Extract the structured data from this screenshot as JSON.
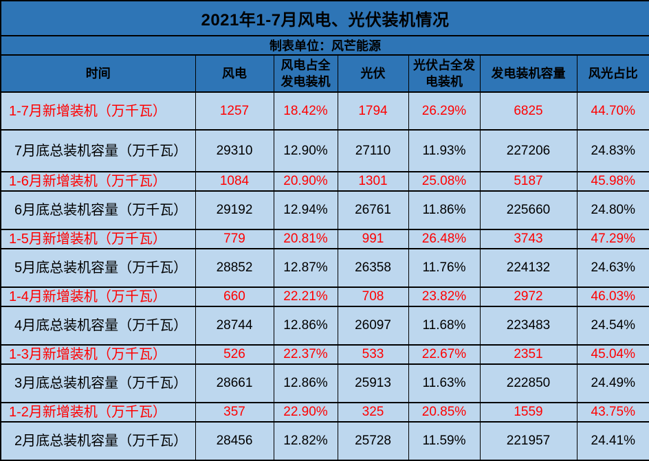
{
  "chart_data": {
    "type": "table",
    "title": "2021年1-7月风电、光伏装机情况",
    "subtitle": "制表单位：风芒能源",
    "columns": [
      "时间",
      "风电",
      "风电占全发电装机",
      "光伏",
      "光伏占全发电装机",
      "发电装机容量",
      "风光占比"
    ],
    "rows": [
      {
        "kind": "new",
        "label": "1-7月新增装机（万千瓦）",
        "values": [
          "1257",
          "18.42%",
          "1794",
          "26.29%",
          "6825",
          "44.70%"
        ]
      },
      {
        "kind": "total",
        "label": "7月底总装机容量（万千瓦）",
        "values": [
          "29310",
          "12.90%",
          "27110",
          "11.93%",
          "227206",
          "24.83%"
        ]
      },
      {
        "kind": "new",
        "label": "1-6月新增装机（万千瓦）",
        "values": [
          "1084",
          "20.90%",
          "1301",
          "25.08%",
          "5187",
          "45.98%"
        ]
      },
      {
        "kind": "total",
        "label": "6月底总装机容量（万千瓦）",
        "values": [
          "29192",
          "12.94%",
          "26761",
          "11.86%",
          "225660",
          "24.80%"
        ]
      },
      {
        "kind": "new",
        "label": "1-5月新增装机（万千瓦）",
        "values": [
          "779",
          "20.81%",
          "991",
          "26.48%",
          "3743",
          "47.29%"
        ]
      },
      {
        "kind": "total",
        "label": "5月底总装机容量（万千瓦）",
        "values": [
          "28852",
          "12.87%",
          "26358",
          "11.76%",
          "224132",
          "24.63%"
        ]
      },
      {
        "kind": "new",
        "label": "1-4月新增装机（万千瓦）",
        "values": [
          "660",
          "22.21%",
          "708",
          "23.82%",
          "2972",
          "46.03%"
        ]
      },
      {
        "kind": "total",
        "label": "4月底总装机容量（万千瓦）",
        "values": [
          "28744",
          "12.86%",
          "26097",
          "11.68%",
          "223483",
          "24.54%"
        ]
      },
      {
        "kind": "new",
        "label": "1-3月新增装机（万千瓦）",
        "values": [
          "526",
          "22.37%",
          "533",
          "22.67%",
          "2351",
          "45.04%"
        ]
      },
      {
        "kind": "total",
        "label": "3月底总装机容量（万千瓦）",
        "values": [
          "28661",
          "12.86%",
          "25913",
          "11.63%",
          "222850",
          "24.49%"
        ]
      },
      {
        "kind": "new",
        "label": "1-2月新增装机（万千瓦）",
        "values": [
          "357",
          "22.90%",
          "325",
          "20.85%",
          "1559",
          "43.75%"
        ]
      },
      {
        "kind": "total",
        "label": "2月底总装机容量（万千瓦）",
        "values": [
          "28456",
          "12.82%",
          "25728",
          "11.59%",
          "221957",
          "24.41%"
        ]
      }
    ],
    "layout_hints": {
      "unit": "万千瓦",
      "new_row_text_color": "#FF0000",
      "total_row_text_color": "#000000",
      "band_background": "#2E75B6",
      "cell_background": "#BDD7EE",
      "border_color": "#000000"
    }
  }
}
